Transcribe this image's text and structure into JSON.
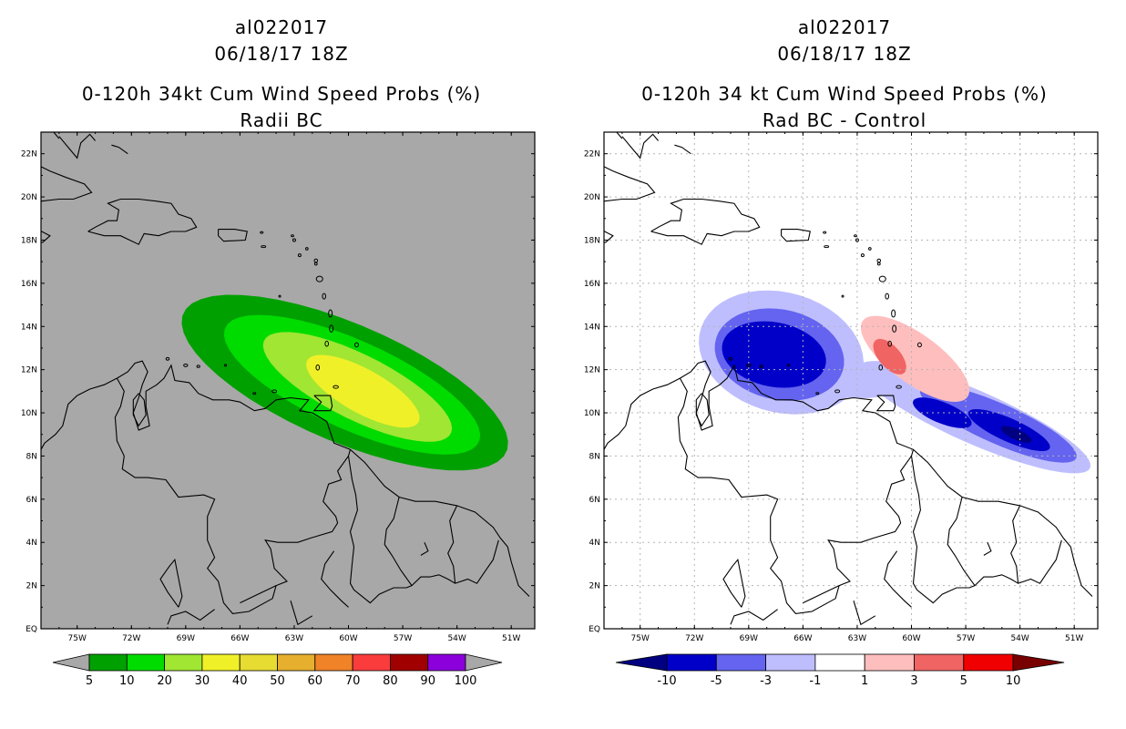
{
  "left": {
    "storm_id": "al022017",
    "datetime": "06/18/17 18Z",
    "title": "0-120h 34kt Cum Wind Speed Probs (%)",
    "subtitle": "Radii BC",
    "background_color": "#a8a8a8",
    "colorbar": {
      "colors": [
        "#00a000",
        "#00dc00",
        "#a0e632",
        "#f0f028",
        "#e6dc32",
        "#e6af2d",
        "#f08228",
        "#fa3c3c",
        "#a00000",
        "#8c00dc"
      ],
      "labels": [
        "5",
        "10",
        "20",
        "30",
        "40",
        "50",
        "60",
        "70",
        "80",
        "90",
        "100"
      ]
    }
  },
  "right": {
    "storm_id": "al022017",
    "datetime": "06/18/17 18Z",
    "title": "0-120h 34 kt Cum Wind Speed Probs (%)",
    "subtitle": "Rad BC - Control",
    "background_color": "#ffffff",
    "colorbar": {
      "colors": [
        "#0000c8",
        "#6464f0",
        "#bebeff",
        "#ffffff",
        "#ffbebe",
        "#f06464",
        "#f00000"
      ],
      "labels": [
        "-10",
        "-5",
        "-3",
        "-1",
        "1",
        "3",
        "5",
        "10"
      ],
      "under_color": "#000080",
      "over_color": "#780000"
    }
  },
  "map": {
    "lat_labels": [
      "EQ",
      "2N",
      "4N",
      "6N",
      "8N",
      "10N",
      "12N",
      "14N",
      "16N",
      "18N",
      "20N",
      "22N"
    ],
    "lon_labels": [
      "75W",
      "72W",
      "69W",
      "66W",
      "63W",
      "60W",
      "57W",
      "54W",
      "51W"
    ]
  }
}
